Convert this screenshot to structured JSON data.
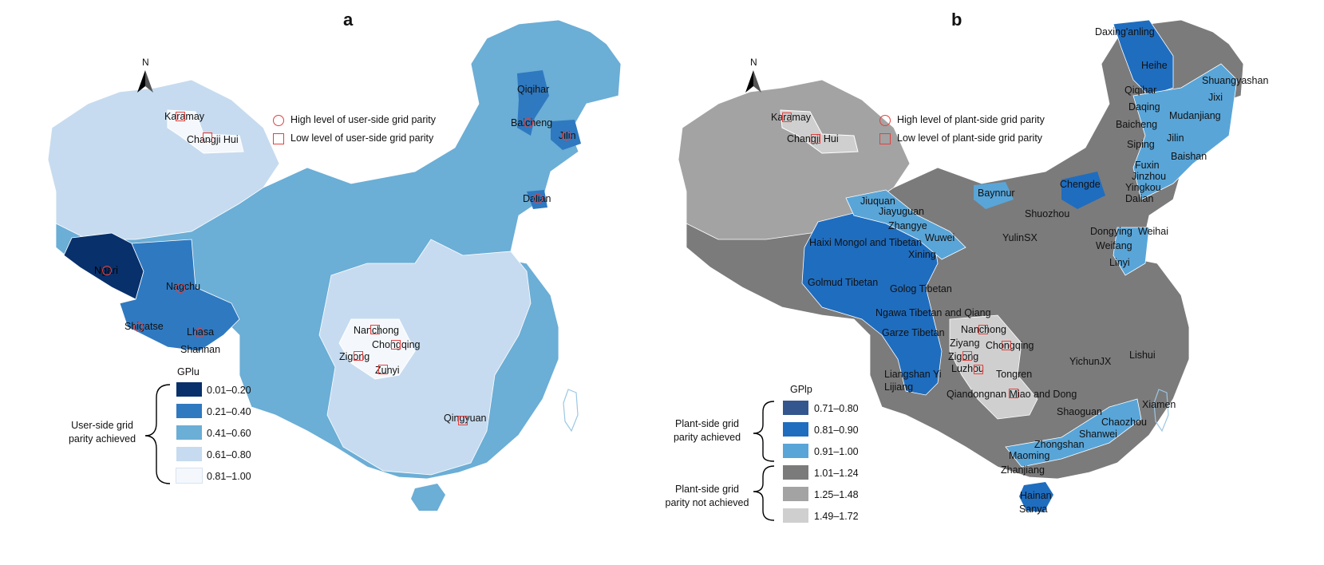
{
  "panel_a": {
    "letter": "a",
    "north": "N",
    "key": {
      "high": "High level of user-side grid parity",
      "low": "Low level of user-side grid parity"
    },
    "legend": {
      "title": "GPlu",
      "group": "User-side grid parity achieved",
      "classes": [
        {
          "label": "0.01–0.20",
          "color": "#08306b"
        },
        {
          "label": "0.21–0.40",
          "color": "#2f79c0"
        },
        {
          "label": "0.41–0.60",
          "color": "#6baed6"
        },
        {
          "label": "0.61–0.80",
          "color": "#c6dbef"
        },
        {
          "label": "0.81–1.00",
          "color": "#f4f8fd"
        }
      ]
    },
    "cities": [
      "Karamay",
      "Changji Hui",
      "Qiqihar",
      "Baicheng",
      "Jilin",
      "Dalian",
      "Ngari",
      "Nagchu",
      "Shigatse",
      "Lhasa",
      "Shannan",
      "Nanchong",
      "Chongqing",
      "Zigong",
      "Zunyi",
      "Qingyuan"
    ]
  },
  "panel_b": {
    "letter": "b",
    "north": "N",
    "key": {
      "high": "High level of plant-side grid parity",
      "low": "Low level of plant-side grid parity"
    },
    "legend": {
      "title": "GPlp",
      "group_achieved": "Plant-side grid parity achieved",
      "group_not": "Plant-side grid parity not achieved",
      "classes": [
        {
          "label": "0.71–0.80",
          "color": "#34568f"
        },
        {
          "label": "0.81–0.90",
          "color": "#1f6dbf"
        },
        {
          "label": "0.91–1.00",
          "color": "#59a5d8"
        },
        {
          "label": "1.01–1.24",
          "color": "#7b7b7b"
        },
        {
          "label": "1.25–1.48",
          "color": "#a3a3a3"
        },
        {
          "label": "1.49–1.72",
          "color": "#cfcfcf"
        }
      ]
    },
    "cities": [
      "Daxing'anling",
      "Heihe",
      "Shuangyashan",
      "Qiqihar",
      "Jixi",
      "Daqing",
      "Mudanjiang",
      "Baicheng",
      "Jilin",
      "Siping",
      "Baishan",
      "Fuxin",
      "Jinzhou",
      "Yingkou",
      "Chengde",
      "Dalian",
      "Karamay",
      "Changji Hui",
      "Jiuquan",
      "Baynnur",
      "Jiayuguan",
      "Shuozhou",
      "Zhangye",
      "Dongying",
      "Weihai",
      "Wuwei",
      "YulinSX",
      "Weifang",
      "Haixi Mongol and Tibetan",
      "Xining",
      "Linyi",
      "Golmud Tibetan",
      "Golog Tibetan",
      "Ngawa Tibetan and Qiang",
      "Nanchong",
      "Garze Tibetan",
      "Ziyang",
      "Chongqing",
      "Lishui",
      "Zigong",
      "YichunJX",
      "Luzhou",
      "Tongren",
      "Liangshan Yi",
      "Lijiang",
      "Qiandongnan Miao and Dong",
      "Xiamen",
      "Shaoguan",
      "Chaozhou",
      "Shanwei",
      "Zhongshan",
      "Maoming",
      "Zhanjiang",
      "Hainan",
      "Sanya"
    ]
  }
}
